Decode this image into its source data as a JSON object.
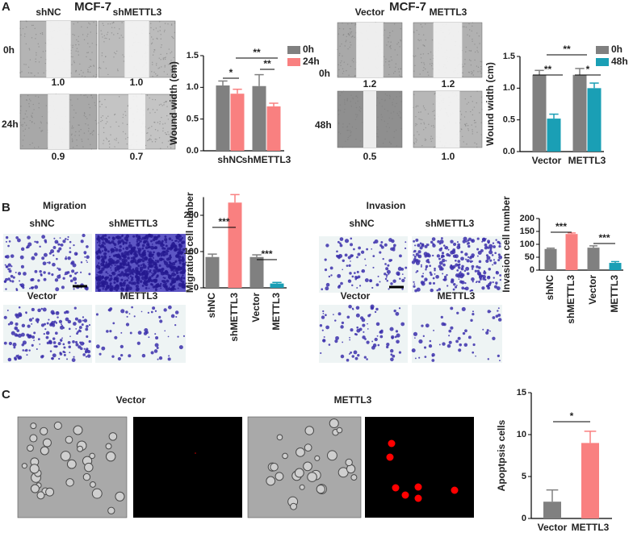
{
  "panel_labels": [
    "A",
    "B",
    "C"
  ],
  "wound": [
    {
      "title": "MCF-7",
      "columns": [
        "shNC",
        "shMETTL3"
      ],
      "rows": [
        "0h",
        "24h"
      ],
      "captions": [
        "1.0",
        "1.0",
        "0.9",
        "0.7"
      ]
    },
    {
      "title": "MCF-7",
      "columns": [
        "Vector",
        "METTL3"
      ],
      "rows": [
        "0h",
        "48h"
      ],
      "captions": [
        "1.2",
        "1.2",
        "0.5",
        "1.0"
      ]
    }
  ],
  "transwell": [
    {
      "title": "Migration",
      "top_labels": [
        "shNC",
        "shMETTL3"
      ],
      "bottom_labels": [
        "Vector",
        "METTL3"
      ]
    },
    {
      "title": "Invasion",
      "top_labels": [
        "shNC",
        "shMETTL3"
      ],
      "bottom_labels": [
        "Vector",
        "METTL3"
      ]
    }
  ],
  "apoptosis_images": [
    "Vector",
    "METTL3"
  ],
  "chart_data": [
    {
      "type": "bar",
      "ylabel": "Wound width (cm)",
      "categories": [
        "shNC",
        "shMETTL3"
      ],
      "series": [
        {
          "name": "0h",
          "color": "#808080",
          "values": [
            1.03,
            1.02
          ],
          "errors": [
            0.07,
            0.18
          ]
        },
        {
          "name": "24h",
          "color": "#f98080",
          "values": [
            0.9,
            0.7
          ],
          "errors": [
            0.07,
            0.05
          ]
        }
      ],
      "ylim": [
        0,
        1.5
      ],
      "yticks": [
        {
          "value": 0,
          "label": "0.0"
        },
        0.5,
        {
          "value": 1,
          "label": "1.0"
        },
        1.5
      ],
      "annotations": [
        "*",
        "**",
        "**"
      ]
    },
    {
      "type": "bar",
      "ylabel": "Wound width (cm)",
      "categories": [
        "Vector",
        "METTL3"
      ],
      "series": [
        {
          "name": "0h",
          "color": "#808080",
          "values": [
            1.21,
            1.21
          ],
          "errors": [
            0.07,
            0.1
          ]
        },
        {
          "name": "48h",
          "color": "#1a9fb5",
          "values": [
            0.52,
            1.0
          ],
          "errors": [
            0.07,
            0.08
          ]
        }
      ],
      "ylim": [
        0,
        1.5
      ],
      "yticks": [
        {
          "value": 0,
          "label": "0.0"
        },
        0.5,
        {
          "value": 1,
          "label": "1.0"
        },
        1.5
      ],
      "annotations": [
        "**",
        "**",
        "*"
      ]
    },
    {
      "type": "bar",
      "ylabel": "Migration cell number",
      "categories": [
        "shNC",
        "shMETTL3",
        "Vector",
        "METTL3"
      ],
      "values": [
        85,
        235,
        85,
        12
      ],
      "errors": [
        8,
        22,
        6,
        3
      ],
      "colors": [
        "#808080",
        "#f98080",
        "#808080",
        "#1a9fb5"
      ],
      "ylim": [
        0,
        250
      ],
      "yticks": [
        0,
        100,
        200
      ],
      "annotations": [
        "***",
        "***"
      ]
    },
    {
      "type": "bar",
      "ylabel": "Invasion cell number",
      "categories": [
        "shNC",
        "shMETTL3",
        "Vector",
        "METTL3"
      ],
      "values": [
        82,
        140,
        87,
        28
      ],
      "errors": [
        3,
        4,
        7,
        5
      ],
      "colors": [
        "#808080",
        "#f98080",
        "#808080",
        "#1a9fb5"
      ],
      "ylim": [
        0,
        200
      ],
      "yticks": [
        0,
        50,
        100,
        150,
        200
      ],
      "annotations": [
        "***",
        "***"
      ]
    },
    {
      "type": "bar",
      "ylabel": "Apoptpsis cells",
      "categories": [
        "Vector",
        "METTL3"
      ],
      "values": [
        2,
        9
      ],
      "errors": [
        1.4,
        1.4
      ],
      "colors": [
        "#808080",
        "#f98080"
      ],
      "ylim": [
        0,
        15
      ],
      "yticks": [
        0,
        5,
        10,
        15
      ],
      "annotations": [
        "*"
      ]
    }
  ]
}
